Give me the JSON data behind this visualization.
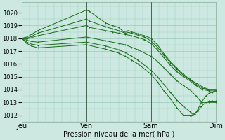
{
  "background_color": "#cce8e0",
  "plot_bg_color": "#cce8e0",
  "grid_color": "#99ccbb",
  "line_color": "#1a6b1a",
  "ylim": [
    1011.5,
    1020.8
  ],
  "yticks": [
    1012,
    1013,
    1014,
    1015,
    1016,
    1017,
    1018,
    1019,
    1020
  ],
  "xlabel": "Pression niveau de la mer( hPa )",
  "xtick_labels": [
    "Jeu",
    "Ven",
    "Sam",
    "Dim"
  ],
  "xtick_positions": [
    0,
    1,
    2,
    3
  ],
  "xlim": [
    0,
    3.0
  ],
  "series": [
    {
      "x": [
        0.0,
        0.08,
        0.15,
        0.25,
        1.0,
        1.05,
        1.3,
        1.4,
        1.5,
        1.58,
        1.62,
        1.65,
        1.7,
        1.8,
        1.9,
        2.0,
        2.1,
        2.2,
        2.3,
        2.4,
        2.5,
        2.6,
        2.7,
        2.8,
        2.9,
        3.0
      ],
      "y": [
        1018.0,
        1018.1,
        1018.3,
        1018.6,
        1020.2,
        1020.1,
        1019.2,
        1019.0,
        1018.85,
        1018.5,
        1018.55,
        1018.6,
        1018.5,
        1018.35,
        1018.2,
        1018.0,
        1017.5,
        1016.8,
        1016.2,
        1015.7,
        1015.2,
        1014.8,
        1014.5,
        1014.2,
        1014.0,
        1014.0
      ]
    },
    {
      "x": [
        0.0,
        0.08,
        0.15,
        0.25,
        1.0,
        1.05,
        1.3,
        1.4,
        1.5,
        1.6,
        1.65,
        1.7,
        1.8,
        1.9,
        2.0,
        2.1,
        2.2,
        2.3,
        2.4,
        2.5,
        2.6,
        2.7,
        2.8,
        2.9,
        3.0
      ],
      "y": [
        1018.0,
        1018.0,
        1018.15,
        1018.4,
        1019.5,
        1019.35,
        1018.9,
        1018.75,
        1018.6,
        1018.4,
        1018.45,
        1018.4,
        1018.25,
        1018.1,
        1017.8,
        1017.3,
        1016.7,
        1016.1,
        1015.6,
        1015.1,
        1014.8,
        1014.4,
        1014.1,
        1014.0,
        1014.0
      ]
    },
    {
      "x": [
        0.0,
        0.08,
        0.15,
        0.25,
        1.0,
        1.05,
        1.3,
        1.4,
        1.5,
        1.6,
        1.7,
        1.8,
        1.9,
        2.0,
        2.1,
        2.2,
        2.3,
        2.4,
        2.5,
        2.6,
        2.7,
        2.8,
        2.9,
        3.0
      ],
      "y": [
        1018.0,
        1017.95,
        1018.05,
        1018.2,
        1019.0,
        1018.85,
        1018.6,
        1018.5,
        1018.4,
        1018.3,
        1018.2,
        1018.05,
        1017.9,
        1017.6,
        1017.1,
        1016.5,
        1015.9,
        1015.4,
        1015.0,
        1014.7,
        1014.3,
        1014.0,
        1013.9,
        1013.9
      ]
    },
    {
      "x": [
        0.0,
        0.08,
        0.15,
        0.25,
        1.0,
        1.3,
        1.5,
        1.6,
        1.7,
        1.8,
        2.0,
        2.1,
        2.2,
        2.3,
        2.4,
        2.5,
        2.6,
        2.7,
        2.75,
        2.8,
        2.9,
        3.0
      ],
      "y": [
        1018.0,
        1017.85,
        1017.75,
        1017.7,
        1018.1,
        1017.8,
        1017.6,
        1017.5,
        1017.3,
        1017.1,
        1016.6,
        1016.2,
        1015.7,
        1015.2,
        1014.7,
        1014.3,
        1014.0,
        1013.5,
        1013.2,
        1013.0,
        1013.0,
        1013.0
      ]
    },
    {
      "x": [
        0.0,
        0.08,
        0.15,
        0.25,
        1.0,
        1.3,
        1.5,
        1.6,
        1.7,
        1.8,
        2.0,
        2.1,
        2.2,
        2.3,
        2.4,
        2.5,
        2.6,
        2.62,
        2.65,
        2.68,
        2.72,
        2.75,
        2.78,
        2.85,
        2.9,
        2.95,
        3.0
      ],
      "y": [
        1018.0,
        1017.7,
        1017.55,
        1017.45,
        1017.7,
        1017.4,
        1017.1,
        1016.9,
        1016.6,
        1016.3,
        1015.5,
        1015.0,
        1014.4,
        1013.8,
        1013.2,
        1012.7,
        1012.3,
        1012.2,
        1012.1,
        1012.1,
        1012.3,
        1012.5,
        1012.7,
        1013.0,
        1013.1,
        1013.1,
        1013.1
      ]
    },
    {
      "x": [
        0.0,
        0.08,
        0.15,
        0.25,
        1.0,
        1.3,
        1.5,
        1.6,
        1.7,
        1.8,
        2.0,
        2.1,
        2.2,
        2.3,
        2.4,
        2.5,
        2.6,
        2.62,
        2.65,
        2.68,
        2.72,
        2.75,
        2.78,
        2.85,
        2.9,
        2.95,
        3.0
      ],
      "y": [
        1018.0,
        1017.6,
        1017.4,
        1017.25,
        1017.5,
        1017.15,
        1016.85,
        1016.6,
        1016.3,
        1016.0,
        1015.2,
        1014.6,
        1013.9,
        1013.3,
        1012.6,
        1012.0,
        1012.0,
        1012.0,
        1012.0,
        1012.1,
        1012.4,
        1012.7,
        1013.0,
        1013.5,
        1013.7,
        1013.8,
        1013.9
      ]
    }
  ]
}
